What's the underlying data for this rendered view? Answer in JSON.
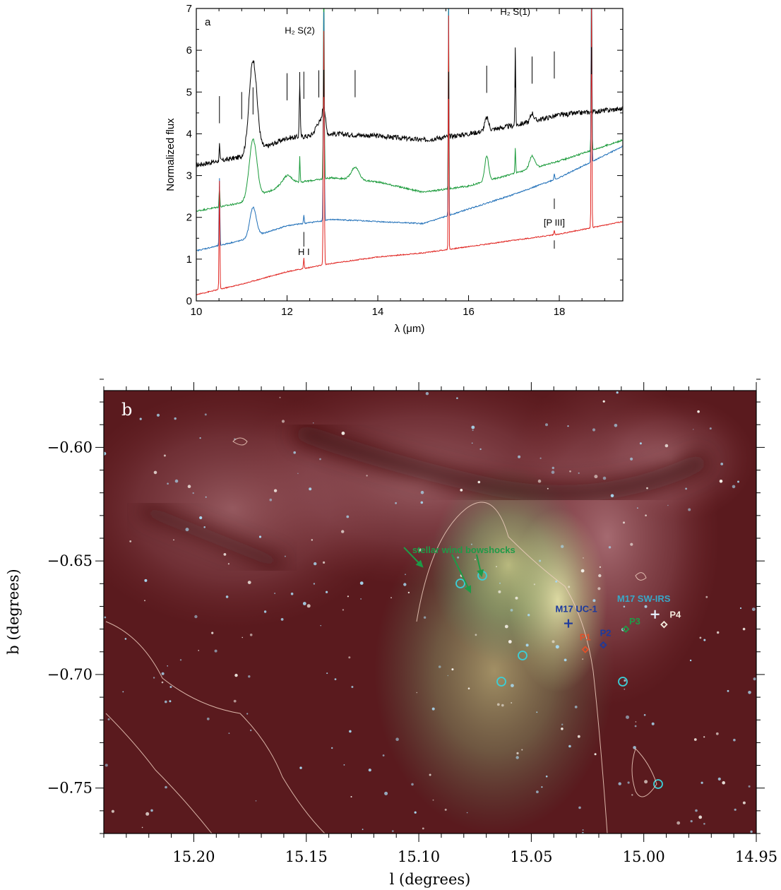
{
  "chart_data": [
    {
      "type": "line",
      "panel_label": "a",
      "xlabel": "λ (μm)",
      "ylabel": "Normalized flux",
      "xlim": [
        10,
        19.4
      ],
      "ylim": [
        0,
        7
      ],
      "x_ticks": [
        "10",
        "12",
        "14",
        "16",
        "18"
      ],
      "y_ticks": [
        "0",
        "1",
        "2",
        "3",
        "4",
        "5",
        "6",
        "7"
      ],
      "series": [
        {
          "color": "#000000",
          "base": [
            [
              10,
              3.25
            ],
            [
              11,
              3.45
            ],
            [
              12,
              3.9
            ],
            [
              13,
              4.0
            ],
            [
              14,
              3.95
            ],
            [
              15,
              3.85
            ],
            [
              16,
              4.0
            ],
            [
              17,
              4.2
            ],
            [
              18,
              4.45
            ],
            [
              19.4,
              4.6
            ]
          ]
        },
        {
          "color": "#1a9a3a",
          "base": [
            [
              10,
              2.15
            ],
            [
              11,
              2.35
            ],
            [
              12,
              2.8
            ],
            [
              13,
              2.95
            ],
            [
              14,
              2.85
            ],
            [
              15,
              2.6
            ],
            [
              16,
              2.75
            ],
            [
              17,
              3.05
            ],
            [
              18,
              3.35
            ],
            [
              19.4,
              3.85
            ]
          ]
        },
        {
          "color": "#1f6fb8",
          "base": [
            [
              10,
              1.2
            ],
            [
              11,
              1.45
            ],
            [
              12,
              1.8
            ],
            [
              13,
              1.95
            ],
            [
              14,
              1.9
            ],
            [
              15,
              1.85
            ],
            [
              16,
              2.2
            ],
            [
              17,
              2.55
            ],
            [
              18,
              2.95
            ],
            [
              19.4,
              3.7
            ]
          ]
        },
        {
          "color": "#e0231f",
          "base": [
            [
              10,
              0.15
            ],
            [
              11,
              0.4
            ],
            [
              12,
              0.7
            ],
            [
              13,
              0.9
            ],
            [
              14,
              1.05
            ],
            [
              15,
              1.15
            ],
            [
              16,
              1.3
            ],
            [
              17,
              1.45
            ],
            [
              18,
              1.6
            ],
            [
              19.4,
              1.9
            ]
          ]
        }
      ],
      "lines_um": [
        10.51,
        11.0,
        11.25,
        12.0,
        12.28,
        12.37,
        12.7,
        12.81,
        13.5,
        15.56,
        16.4,
        17.03,
        17.4,
        17.89,
        18.71
      ],
      "annotations": [
        {
          "text": "H₂ S(2)",
          "x": 12.28,
          "y": 6.4
        },
        {
          "text": "H₂ S(1)",
          "x": 17.03,
          "y": 6.85
        },
        {
          "text": "H I",
          "x": 12.37,
          "y": 1.1
        },
        {
          "text": "[P III]",
          "x": 17.89,
          "y": 1.8
        }
      ]
    },
    {
      "type": "image",
      "panel_label": "b",
      "xlabel": "l (degrees)",
      "ylabel": "b (degrees)",
      "xlim": [
        15.24,
        14.95
      ],
      "ylim": [
        -0.77,
        -0.575
      ],
      "x_ticks": [
        "15.20",
        "15.15",
        "15.10",
        "15.05",
        "15.00",
        "14.95"
      ],
      "y_ticks": [
        "−0.60",
        "−0.65",
        "−0.70",
        "−0.75"
      ],
      "annotations": [
        {
          "text": "stellar wind bowshocks",
          "l": 15.08,
          "b": -0.6465,
          "color": "#1f9a47"
        },
        {
          "text": "M17 UC-1",
          "l": 15.03,
          "b": -0.6725,
          "color": "#1c3a9e"
        },
        {
          "text": "M17 SW-IRS",
          "l": 15.0,
          "b": -0.668,
          "color": "#38a8c8"
        },
        {
          "text": "P1",
          "l": 15.026,
          "b": -0.685,
          "color": "#e0502a"
        },
        {
          "text": "P2",
          "l": 15.017,
          "b": -0.683,
          "color": "#1c3a9e"
        },
        {
          "text": "P3",
          "l": 15.004,
          "b": -0.678,
          "color": "#1f9a47"
        },
        {
          "text": "P4",
          "l": 14.986,
          "b": -0.675,
          "color": "#f2e9dc"
        }
      ],
      "markers": [
        {
          "kind": "plus",
          "l": 15.0335,
          "b": -0.6775,
          "color": "#1c3a9e"
        },
        {
          "kind": "plus",
          "l": 14.995,
          "b": -0.6735,
          "color": "#e8f4ff"
        },
        {
          "kind": "diamond",
          "l": 15.026,
          "b": -0.689,
          "color": "#e0502a"
        },
        {
          "kind": "diamond",
          "l": 15.018,
          "b": -0.687,
          "color": "#1c3a9e"
        },
        {
          "kind": "diamond",
          "l": 15.008,
          "b": -0.68,
          "color": "#1f9a47"
        },
        {
          "kind": "diamond",
          "l": 14.991,
          "b": -0.678,
          "color": "#f2e9dc"
        }
      ]
    }
  ]
}
